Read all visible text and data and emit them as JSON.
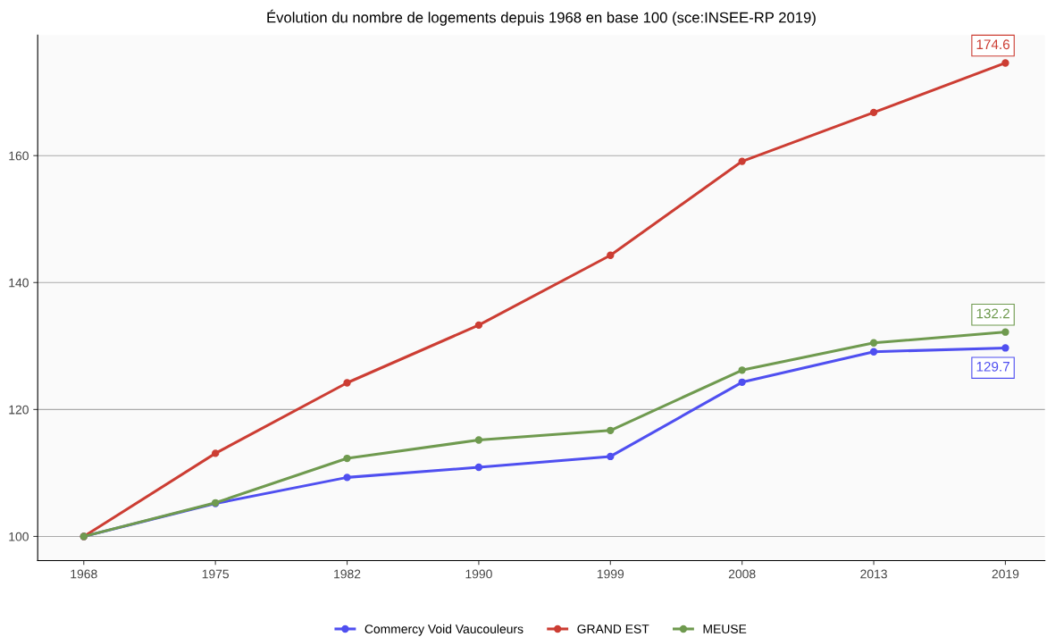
{
  "chart_data": {
    "type": "line",
    "title": "Évolution du nombre de logements depuis 1968 en base 100 (sce:INSEE-RP 2019)",
    "categories": [
      "1968",
      "1975",
      "1982",
      "1990",
      "1999",
      "2008",
      "2013",
      "2019"
    ],
    "series": [
      {
        "name": "Commercy Void Vaucouleurs",
        "color": "#4f4ff0",
        "values": [
          100,
          105.2,
          109.3,
          110.9,
          112.6,
          124.3,
          129.1,
          129.7
        ],
        "value_labels": [
          null,
          null,
          null,
          null,
          null,
          null,
          null,
          "129.7"
        ]
      },
      {
        "name": "GRAND EST",
        "color": "#cc3d33",
        "values": [
          100,
          113.1,
          124.2,
          133.3,
          144.3,
          159.1,
          166.8,
          174.6
        ],
        "value_labels": [
          null,
          null,
          null,
          null,
          null,
          null,
          null,
          "174.6"
        ]
      },
      {
        "name": "MEUSE",
        "color": "#6f9a4f",
        "values": [
          100,
          105.3,
          112.3,
          115.2,
          116.7,
          126.2,
          130.5,
          132.2
        ],
        "value_labels": [
          null,
          null,
          null,
          null,
          null,
          null,
          null,
          "132.2"
        ]
      }
    ],
    "ylim": [
      96.2,
      179
    ],
    "yticks": [
      100,
      120,
      140,
      160
    ],
    "grid": "y",
    "legend": "bottom",
    "marker": "circle",
    "line_style": "solid"
  }
}
